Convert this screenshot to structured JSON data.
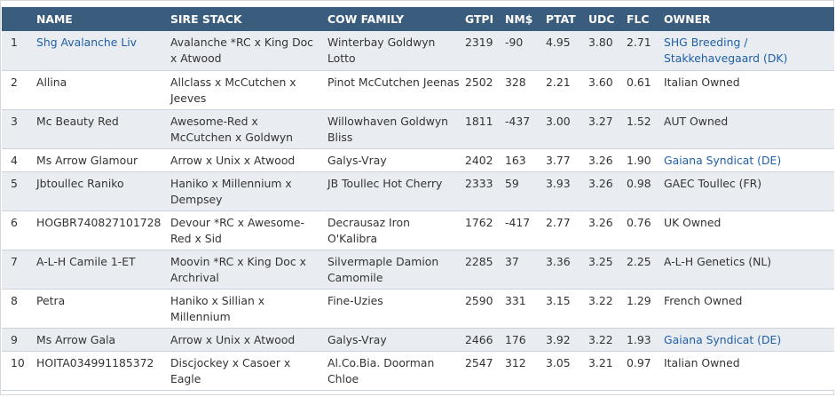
{
  "headers": {
    "rank": "",
    "name": "NAME",
    "sire": "SIRE STACK",
    "cow": "COW FAMILY",
    "gtpi": "GTPI",
    "nm": "NM$",
    "ptat": "PTAT",
    "udc": "UDC",
    "flc": "FLC",
    "owner": "OWNER"
  },
  "rows": [
    {
      "rank": "1",
      "name": "Shg Avalanche Liv",
      "name_link": true,
      "sire": "Avalanche *RC x King Doc x Atwood",
      "cow": "Winterbay Goldwyn Lotto",
      "gtpi": "2319",
      "nm": "-90",
      "ptat": "4.95",
      "udc": "3.80",
      "flc": "2.71",
      "owner": "SHG Breeding / Stakkehavegaard (DK)",
      "owner_link": true
    },
    {
      "rank": "2",
      "name": "Allina",
      "name_link": false,
      "sire": "Allclass x McCutchen x Jeeves",
      "cow": "Pinot McCutchen Jeenas",
      "gtpi": "2502",
      "nm": "328",
      "ptat": "2.21",
      "udc": "3.60",
      "flc": "0.61",
      "owner": "Italian Owned",
      "owner_link": false
    },
    {
      "rank": "3",
      "name": "Mc Beauty Red",
      "name_link": false,
      "sire": "Awesome-Red x McCutchen x Goldwyn",
      "cow": "Willowhaven Goldwyn Bliss",
      "gtpi": "1811",
      "nm": "-437",
      "ptat": "3.00",
      "udc": "3.27",
      "flc": "1.52",
      "owner": "AUT Owned",
      "owner_link": false
    },
    {
      "rank": "4",
      "name": "Ms Arrow Glamour",
      "name_link": false,
      "sire": "Arrow x Unix x Atwood",
      "cow": "Galys-Vray",
      "gtpi": "2402",
      "nm": "163",
      "ptat": "3.77",
      "udc": "3.26",
      "flc": "1.90",
      "owner": "Gaiana Syndicat (DE)",
      "owner_link": true
    },
    {
      "rank": "5",
      "name": "Jbtoullec Raniko",
      "name_link": false,
      "sire": "Haniko x Millennium x Dempsey",
      "cow": "JB Toullec Hot Cherry",
      "gtpi": "2333",
      "nm": "59",
      "ptat": "3.93",
      "udc": "3.26",
      "flc": "0.98",
      "owner": "GAEC Toullec (FR)",
      "owner_link": false
    },
    {
      "rank": "6",
      "name": "HOGBR740827101728",
      "name_link": false,
      "sire": "Devour *RC x Awesome-Red x Sid",
      "cow": "Decrausaz Iron O'Kalibra",
      "gtpi": "1762",
      "nm": "-417",
      "ptat": "2.77",
      "udc": "3.26",
      "flc": "0.76",
      "owner": "UK Owned",
      "owner_link": false
    },
    {
      "rank": "7",
      "name": "A-L-H Camile 1-ET",
      "name_link": false,
      "sire": "Moovin *RC x King Doc x Archrival",
      "cow": "Silvermaple Damion Camomile",
      "gtpi": "2285",
      "nm": "37",
      "ptat": "3.36",
      "udc": "3.25",
      "flc": "2.25",
      "owner": "A-L-H Genetics (NL)",
      "owner_link": false
    },
    {
      "rank": "8",
      "name": "Petra",
      "name_link": false,
      "sire": "Haniko x Sillian x Millennium",
      "cow": "Fine-Uzies",
      "gtpi": "2590",
      "nm": "331",
      "ptat": "3.15",
      "udc": "3.22",
      "flc": "1.29",
      "owner": "French Owned",
      "owner_link": false
    },
    {
      "rank": "9",
      "name": "Ms Arrow Gala",
      "name_link": false,
      "sire": "Arrow x Unix x Atwood",
      "cow": "Galys-Vray",
      "gtpi": "2466",
      "nm": "176",
      "ptat": "3.92",
      "udc": "3.22",
      "flc": "1.93",
      "owner": "Gaiana Syndicat (DE)",
      "owner_link": true
    },
    {
      "rank": "10",
      "name": "HOITA034991185372",
      "name_link": false,
      "sire": "Discjockey x Casoer x Eagle",
      "cow": "Al.Co.Bia. Doorman Chloe",
      "gtpi": "2547",
      "nm": "312",
      "ptat": "3.05",
      "udc": "3.21",
      "flc": "0.97",
      "owner": "Italian Owned",
      "owner_link": false
    }
  ],
  "colors": {
    "header_bg": "#3a5c7d",
    "header_text": "#ffffff",
    "row_alt": "#e9edf2",
    "link": "#1f5fa6",
    "text": "#333333"
  }
}
